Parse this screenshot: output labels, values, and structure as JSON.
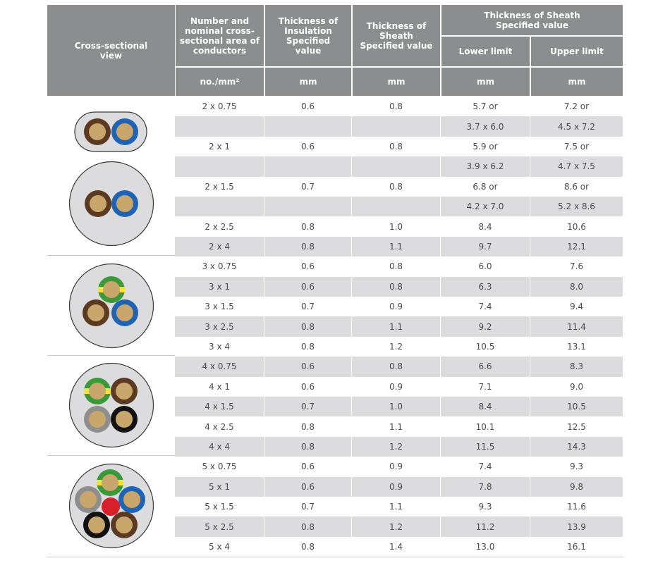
{
  "header": {
    "cross_section": "Cross-sectional view",
    "conductors": "Number and nominal cross-sectional area of conductors",
    "insulation": "Thickness of Insulation Specified value",
    "sheath": "Thickness of Sheath Specified value",
    "overall": "Thickness of Sheath Specified value",
    "lower": "Lower limit",
    "upper": "Upper limit",
    "unit_conductors": "no./mm²",
    "unit_insulation": "mm",
    "unit_sheath": "mm",
    "unit_lower": "mm",
    "unit_upper": "mm"
  },
  "rows": [
    {
      "size": "2 x 0.75",
      "insulation": "0.6",
      "sheath": "0.8",
      "lower": "5.7  or",
      "upper": "7.2  or",
      "shade": false
    },
    {
      "size": "",
      "insulation": "",
      "sheath": "",
      "lower": "3.7 x 6.0",
      "upper": "4.5 x 7.2",
      "shade": true
    },
    {
      "size": "2 x 1",
      "insulation": "0.6",
      "sheath": "0.8",
      "lower": "5.9 or",
      "upper": "7.5 or",
      "shade": false
    },
    {
      "size": "",
      "insulation": "",
      "sheath": "",
      "lower": "3.9 x 6.2",
      "upper": "4.7 x 7.5",
      "shade": true
    },
    {
      "size": "2 x 1.5",
      "insulation": "0.7",
      "sheath": "0.8",
      "lower": "6.8 or",
      "upper": "8.6 or",
      "shade": false
    },
    {
      "size": "",
      "insulation": "",
      "sheath": "",
      "lower": "4.2 x 7.0",
      "upper": "5.2 x 8.6",
      "shade": true
    },
    {
      "size": "2 x 2.5",
      "insulation": "0.8",
      "sheath": "1.0",
      "lower": "8.4",
      "upper": "10.6",
      "shade": false
    },
    {
      "size": "2 x 4",
      "insulation": "0.8",
      "sheath": "1.1",
      "lower": "9.7",
      "upper": "12.1",
      "shade": true
    },
    {
      "size": "3 x 0.75",
      "insulation": "0.6",
      "sheath": "0.8",
      "lower": "6.0",
      "upper": "7.6",
      "shade": false
    },
    {
      "size": "3 x 1",
      "insulation": "0.6",
      "sheath": "0.8",
      "lower": "6.3",
      "upper": "8.0",
      "shade": true
    },
    {
      "size": "3 x 1.5",
      "insulation": "0.7",
      "sheath": "0.9",
      "lower": "7.4",
      "upper": "9.4",
      "shade": false
    },
    {
      "size": "3 x 2.5",
      "insulation": "0.8",
      "sheath": "1.1",
      "lower": "9.2",
      "upper": "11.4",
      "shade": true
    },
    {
      "size": "3 x 4",
      "insulation": "0.8",
      "sheath": "1.2",
      "lower": "10.5",
      "upper": "13.1",
      "shade": false
    },
    {
      "size": "4 x 0.75",
      "insulation": "0.6",
      "sheath": "0.8",
      "lower": "6.6",
      "upper": "8.3",
      "shade": true
    },
    {
      "size": "4 x 1",
      "insulation": "0.6",
      "sheath": "0.9",
      "lower": "7.1",
      "upper": "9.0",
      "shade": false
    },
    {
      "size": "4 x 1.5",
      "insulation": "0.7",
      "sheath": "1.0",
      "lower": "8.4",
      "upper": "10.5",
      "shade": true
    },
    {
      "size": "4 x 2.5",
      "insulation": "0.8",
      "sheath": "1.1",
      "lower": "10.1",
      "upper": "12.5",
      "shade": false
    },
    {
      "size": "4 x 4",
      "insulation": "0.8",
      "sheath": "1.2",
      "lower": "11.5",
      "upper": "14.3",
      "shade": true
    },
    {
      "size": "5 x 0.75",
      "insulation": "0.6",
      "sheath": "0.9",
      "lower": "7.4",
      "upper": "9.3",
      "shade": false
    },
    {
      "size": "5 x 1",
      "insulation": "0.6",
      "sheath": "0.9",
      "lower": "7.8",
      "upper": "9.8",
      "shade": true
    },
    {
      "size": "5 x 1.5",
      "insulation": "0.7",
      "sheath": "1.1",
      "lower": "9.3",
      "upper": "11.6",
      "shade": false
    },
    {
      "size": "5 x 2.5",
      "insulation": "0.8",
      "sheath": "1.2",
      "lower": "11.2",
      "upper": "13.9",
      "shade": true
    },
    {
      "size": "5 x 4",
      "insulation": "0.8",
      "sheath": "1.4",
      "lower": "13.0",
      "upper": "16.1",
      "shade": false
    }
  ],
  "colors": {
    "header_bg": "#8c8d8f",
    "row_shade": "#dcdcde",
    "sheath": "#dcdcde",
    "copper": "#c9a66b",
    "brown": "#5c3a21",
    "blue": "#1f63b5",
    "green": "#3a9a3a",
    "yellow": "#f2e23a",
    "grey": "#8e8e8e",
    "black": "#111111",
    "red": "#d8202a"
  }
}
